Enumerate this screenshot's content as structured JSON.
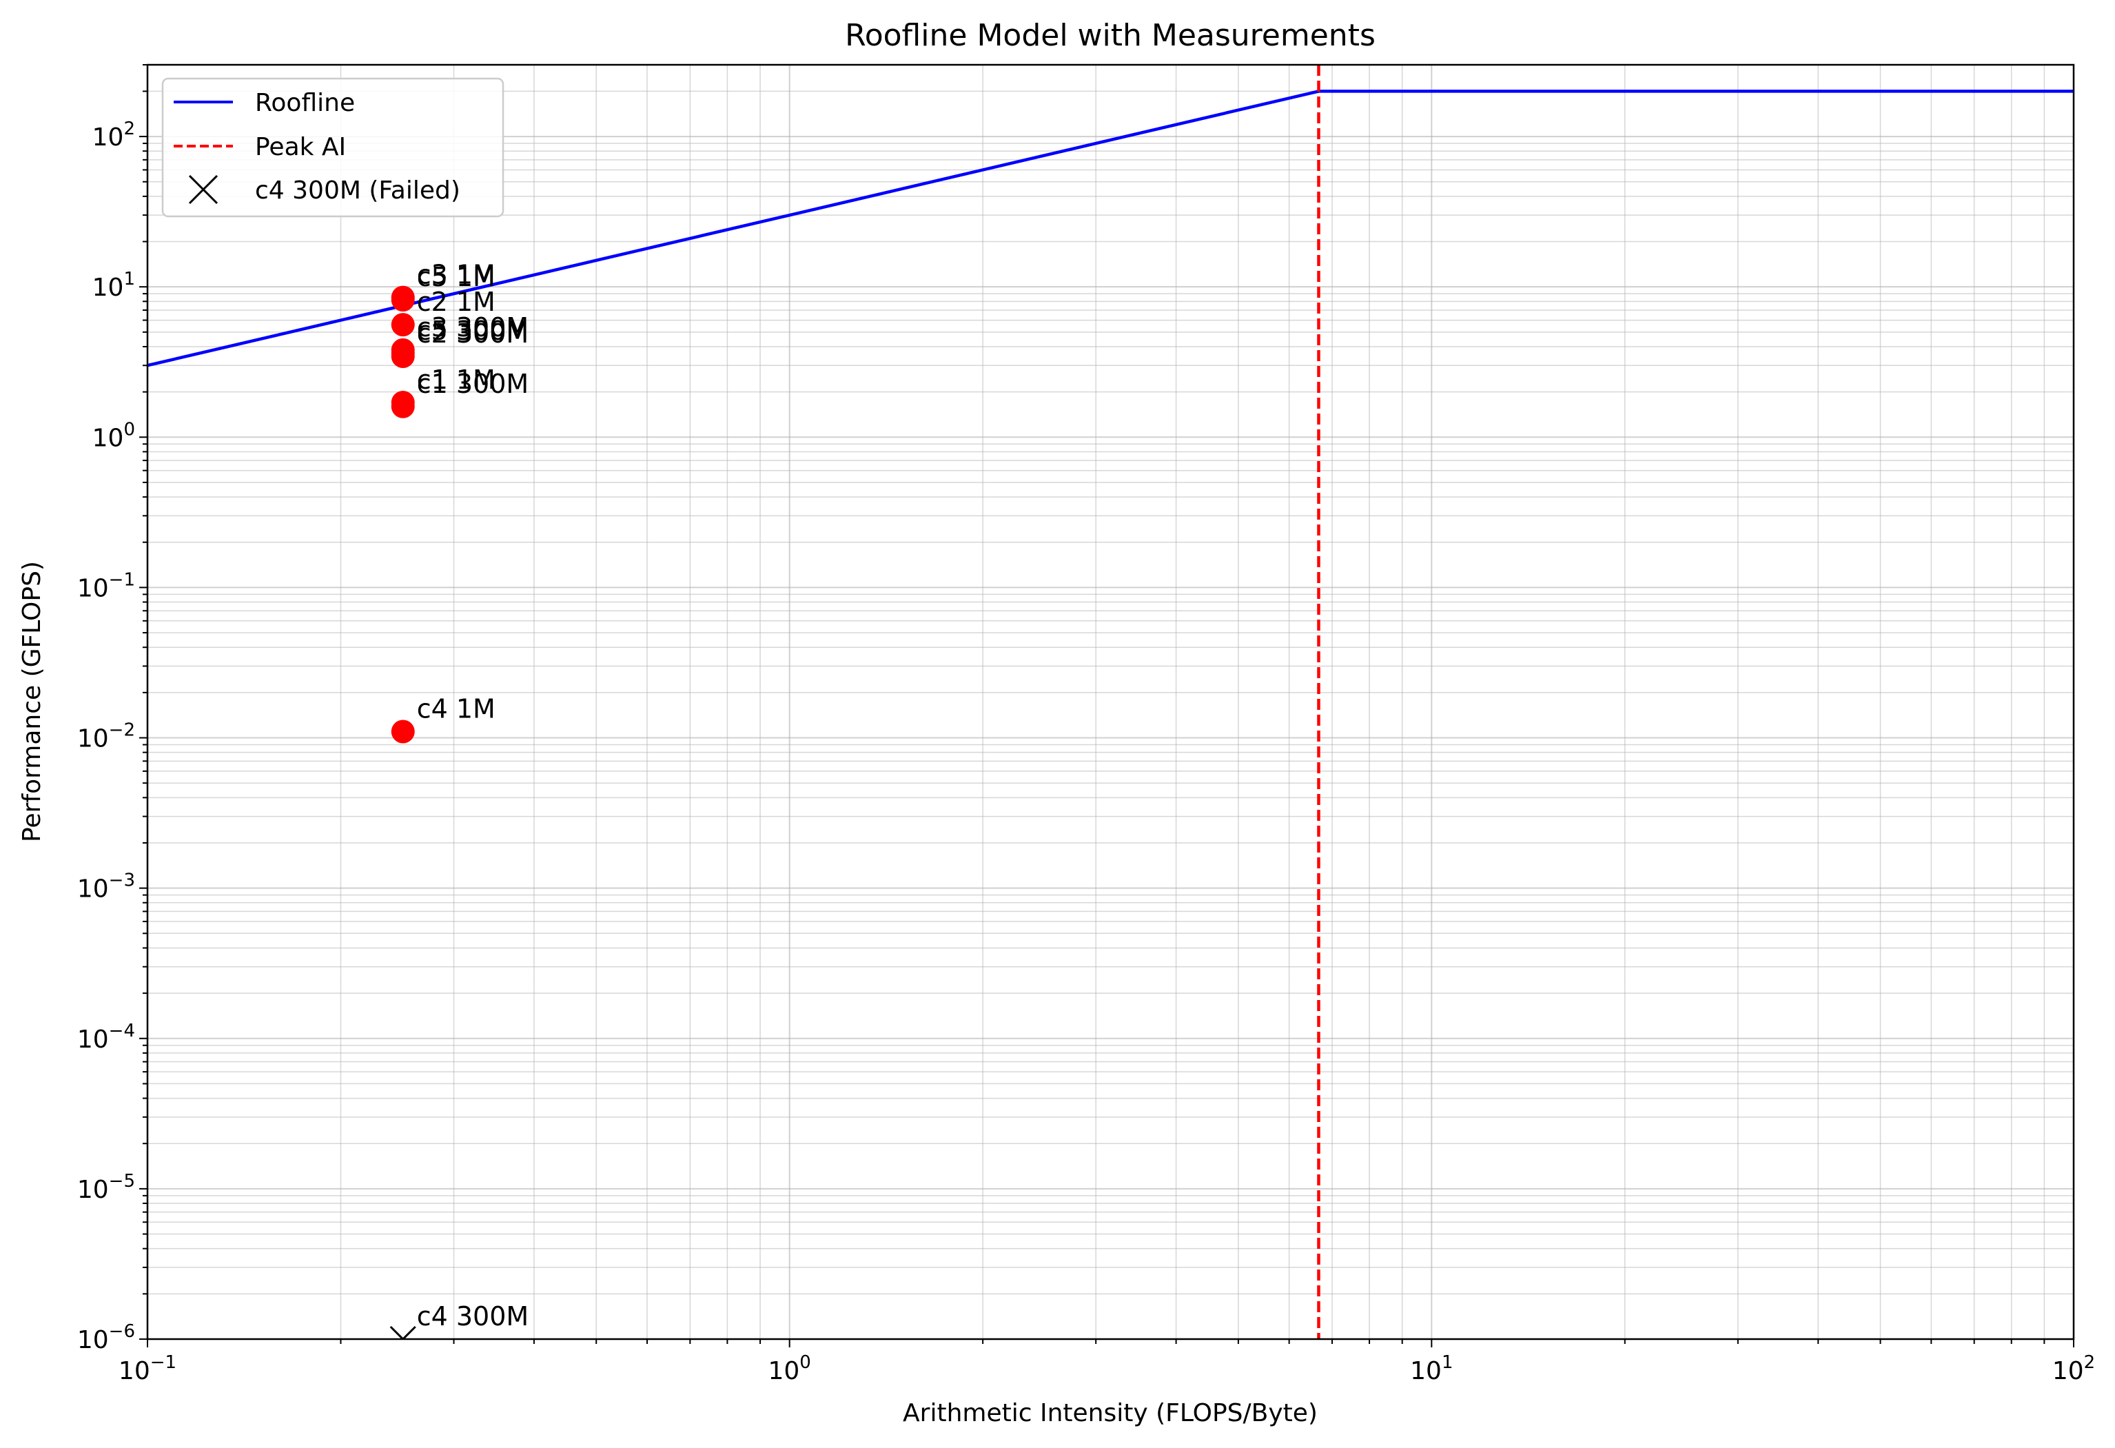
{
  "chart_data": {
    "type": "scatter",
    "title": "Roofline Model with Measurements",
    "xlabel": "Arithmetic Intensity (FLOPS/Byte)",
    "ylabel": "Performance (GFLOPS)",
    "xscale": "log",
    "yscale": "log",
    "xlim": [
      0.1,
      100
    ],
    "ylim": [
      1e-06,
      300
    ],
    "grid": "both (major and minor)",
    "legend_position": "upper-left",
    "x_tick_labels": [
      {
        "value": 0.1,
        "base": "10",
        "exp": "−1"
      },
      {
        "value": 1,
        "base": "10",
        "exp": "0"
      },
      {
        "value": 10,
        "base": "10",
        "exp": "1"
      },
      {
        "value": 100,
        "base": "10",
        "exp": "2"
      }
    ],
    "y_tick_labels": [
      {
        "value": 1e-06,
        "base": "10",
        "exp": "−6"
      },
      {
        "value": 1e-05,
        "base": "10",
        "exp": "−5"
      },
      {
        "value": 0.0001,
        "base": "10",
        "exp": "−4"
      },
      {
        "value": 0.001,
        "base": "10",
        "exp": "−3"
      },
      {
        "value": 0.01,
        "base": "10",
        "exp": "−2"
      },
      {
        "value": 0.1,
        "base": "10",
        "exp": "−1"
      },
      {
        "value": 1,
        "base": "10",
        "exp": "0"
      },
      {
        "value": 10,
        "base": "10",
        "exp": "1"
      },
      {
        "value": 100,
        "base": "10",
        "exp": "2"
      }
    ],
    "roofline": {
      "name": "Roofline",
      "color": "#0000ff",
      "points": [
        [
          0.1,
          3.0
        ],
        [
          6.67,
          200
        ],
        [
          100,
          200
        ]
      ]
    },
    "peak_ai": {
      "name": "Peak AI",
      "x": 6.67,
      "color": "#ff0000"
    },
    "measurements": [
      {
        "label": "c3 1M",
        "x": 0.25,
        "y": 8.5,
        "marker": "circle",
        "color": "#ff0000"
      },
      {
        "label": "c5 1M",
        "x": 0.25,
        "y": 8.2,
        "marker": "circle",
        "color": "#ff0000"
      },
      {
        "label": "c2 1M",
        "x": 0.25,
        "y": 5.6,
        "marker": "circle",
        "color": "#ff0000"
      },
      {
        "label": "c3 300M",
        "x": 0.25,
        "y": 3.8,
        "marker": "circle",
        "color": "#ff0000"
      },
      {
        "label": "c5 300M",
        "x": 0.25,
        "y": 3.6,
        "marker": "circle",
        "color": "#ff0000"
      },
      {
        "label": "c2 300M",
        "x": 0.25,
        "y": 3.45,
        "marker": "circle",
        "color": "#ff0000"
      },
      {
        "label": "c1 1M",
        "x": 0.25,
        "y": 1.7,
        "marker": "circle",
        "color": "#ff0000"
      },
      {
        "label": "c1 300M",
        "x": 0.25,
        "y": 1.6,
        "marker": "circle",
        "color": "#ff0000"
      },
      {
        "label": "c4 1M",
        "x": 0.25,
        "y": 0.011,
        "marker": "circle",
        "color": "#ff0000"
      },
      {
        "label": "c4 300M",
        "x": 0.25,
        "y": 1e-06,
        "marker": "x",
        "color": "#000000"
      }
    ],
    "legend": [
      {
        "label": "Roofline",
        "style": "solid-line",
        "color": "#0000ff"
      },
      {
        "label": "Peak AI",
        "style": "dashed-line",
        "color": "#ff0000"
      },
      {
        "label": "c4 300M (Failed)",
        "style": "x-marker",
        "color": "#000000"
      }
    ]
  }
}
